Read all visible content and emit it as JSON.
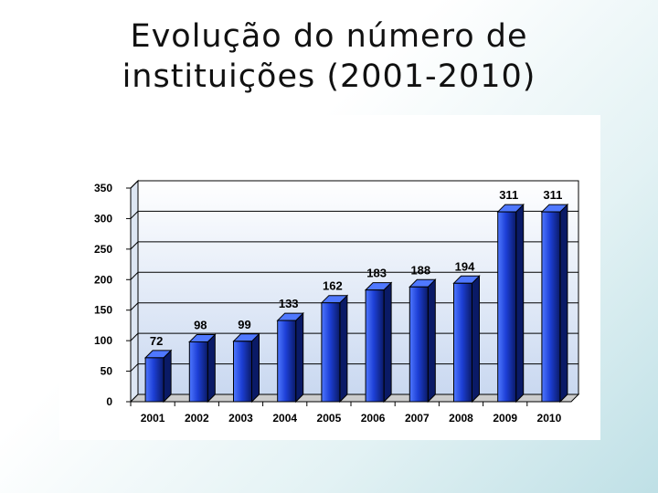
{
  "slide": {
    "title_line1": "Evolução do número de",
    "title_line2": "instituições (2001-2010)"
  },
  "chart_data": {
    "type": "bar",
    "categories": [
      "2001",
      "2002",
      "2003",
      "2004",
      "2005",
      "2006",
      "2007",
      "2008",
      "2009",
      "2010"
    ],
    "values": [
      72,
      98,
      99,
      133,
      162,
      183,
      188,
      194,
      311,
      311
    ],
    "data_labels": [
      "72",
      "98",
      "99",
      "133",
      "162",
      "183",
      "188",
      "194",
      "311",
      "311"
    ],
    "ylim": [
      0,
      350
    ],
    "yticks": [
      0,
      50,
      100,
      150,
      200,
      250,
      300,
      350
    ],
    "grid": true,
    "legend": "none",
    "style": "3d",
    "colors": {
      "bar_light": "#4f78ff",
      "bar_mid": "#1d3fd6",
      "bar_dark": "#0a1a66",
      "wall_top": "#ffffff",
      "wall_bottom": "#c9d8f0",
      "floor": "#cccccc"
    }
  }
}
